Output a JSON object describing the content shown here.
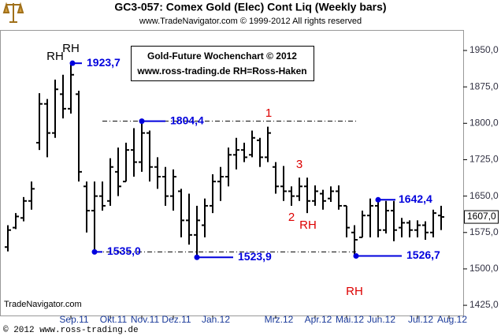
{
  "chart_data": {
    "type": "ohlc",
    "title": "GC3-057:  Comex Gold (Elec) Cont Liq  (Weekly bars)",
    "subtitle": "www.TradeNavigator.com © 1999-2012 All rights reserved",
    "text_box": [
      "Gold-Future Wochenchart © 2012",
      "www.ross-trading.de  RH=Ross-Haken"
    ],
    "watermark": "TradeNavigator.com",
    "categories": [
      null,
      null,
      null,
      null,
      null,
      null,
      null,
      null,
      "Sep.11",
      null,
      null,
      null,
      null,
      "Okt.11",
      null,
      null,
      null,
      "Nov.11",
      null,
      null,
      null,
      "Dez.11",
      null,
      null,
      null,
      null,
      "Jan.12",
      null,
      null,
      null,
      null,
      null,
      null,
      null,
      "Mrz.12",
      null,
      null,
      null,
      null,
      "Apr.12",
      null,
      null,
      null,
      "Mai.12",
      null,
      null,
      null,
      "Jun.12",
      null,
      null,
      null,
      null,
      "Jul.12",
      null,
      null,
      null,
      "Aug.12"
    ],
    "open": [
      1545,
      1585,
      1605,
      1640,
      1760,
      1840,
      1780,
      1860,
      1830,
      1860,
      1670,
      1620,
      1650,
      1640,
      1700,
      1680,
      1745,
      1720,
      1780,
      1710,
      1690,
      1650,
      1660,
      1600,
      1570,
      1590,
      1630,
      1680,
      1690,
      1735,
      1745,
      1735,
      1765,
      1730,
      1710,
      1670,
      1660,
      1650,
      1670,
      1640,
      1655,
      1645,
      1660,
      1630,
      1575,
      1565,
      1610,
      1630,
      1580,
      1620,
      1585,
      1595,
      1580,
      1590,
      1575,
      1610,
      null
    ],
    "high": [
      1590,
      1615,
      1648,
      1680,
      1862,
      1850,
      1890,
      1900,
      1923.7,
      1867,
      1680,
      1680,
      1680,
      1728,
      1750,
      1760,
      1790,
      1804.4,
      1785,
      1730,
      1710,
      1705,
      1665,
      1655,
      1630,
      1645,
      1695,
      1710,
      1750,
      1770,
      1760,
      1785,
      1770,
      1793,
      1720,
      1712,
      1670,
      1688,
      1688,
      1672,
      1663,
      1670,
      1672,
      1630,
      1590,
      1620,
      1645,
      1642.4,
      1640,
      1640,
      1605,
      1600,
      1600,
      1598,
      1622,
      1630,
      null
    ],
    "low": [
      1536,
      1582,
      1598,
      1622,
      1745,
      1730,
      1770,
      1810,
      1820,
      1680,
      1575,
      1535,
      1620,
      1630,
      1650,
      1680,
      1690,
      1700,
      1680,
      1665,
      1630,
      1620,
      1565,
      1550,
      1523.9,
      1565,
      1615,
      1640,
      1670,
      1705,
      1720,
      1730,
      1710,
      1720,
      1655,
      1640,
      1630,
      1640,
      1615,
      1630,
      1622,
      1638,
      1622,
      1565,
      1526.7,
      1565,
      1565,
      1565,
      1573,
      1557,
      1565,
      1565,
      1565,
      1560,
      1565,
      1580,
      null
    ],
    "close": [
      1580,
      1608,
      1640,
      1665,
      1840,
      1780,
      1870,
      1830,
      1900,
      1700,
      1620,
      1650,
      1630,
      1710,
      1670,
      1745,
      1720,
      1780,
      1710,
      1690,
      1650,
      1690,
      1600,
      1570,
      1600,
      1630,
      1680,
      1690,
      1735,
      1745,
      1730,
      1770,
      1730,
      1780,
      1670,
      1660,
      1650,
      1670,
      1640,
      1660,
      1640,
      1660,
      1630,
      1585,
      1560,
      1610,
      1630,
      1580,
      1620,
      1580,
      1595,
      1580,
      1590,
      1575,
      1615,
      1607,
      null
    ],
    "color": "#000000",
    "ylim": [
      1404,
      1989
    ],
    "yticks": [
      {
        "value": 1425,
        "label": "1425,0"
      },
      {
        "value": 1500,
        "label": "1500,0"
      },
      {
        "value": 1575,
        "label": "1575,0"
      },
      {
        "value": 1650,
        "label": "1650,0"
      },
      {
        "value": 1725,
        "label": "1725,0"
      },
      {
        "value": 1800,
        "label": "1800,0"
      },
      {
        "value": 1875,
        "label": "1875,0"
      },
      {
        "value": 1950,
        "label": "1950,0"
      }
    ],
    "last_price": {
      "value": 1607,
      "label": "1607,0"
    },
    "annotation_color": "#0000dd",
    "annotations": [
      {
        "value": 1923.7,
        "label": "1923,7"
      },
      {
        "value": 1804.4,
        "label": "1804,4"
      },
      {
        "value": 1535,
        "label": "1535,0"
      },
      {
        "value": 1523.9,
        "label": "1523,9"
      },
      {
        "value": 1642.4,
        "label": "1642,4"
      },
      {
        "value": 1526.7,
        "label": "1526,7"
      }
    ],
    "markers": [
      {
        "text": "RH",
        "color": "#000000"
      },
      {
        "text": "RH",
        "color": "#000000"
      },
      {
        "text": "1",
        "color": "#dd0000"
      },
      {
        "text": "3",
        "color": "#dd0000"
      },
      {
        "text": "2",
        "color": "#dd0000"
      },
      {
        "text": "RH",
        "color": "#dd0000"
      },
      {
        "text": "RH",
        "color": "#dd0000"
      }
    ]
  },
  "footer": "© 2012  www.ross-trading.de"
}
